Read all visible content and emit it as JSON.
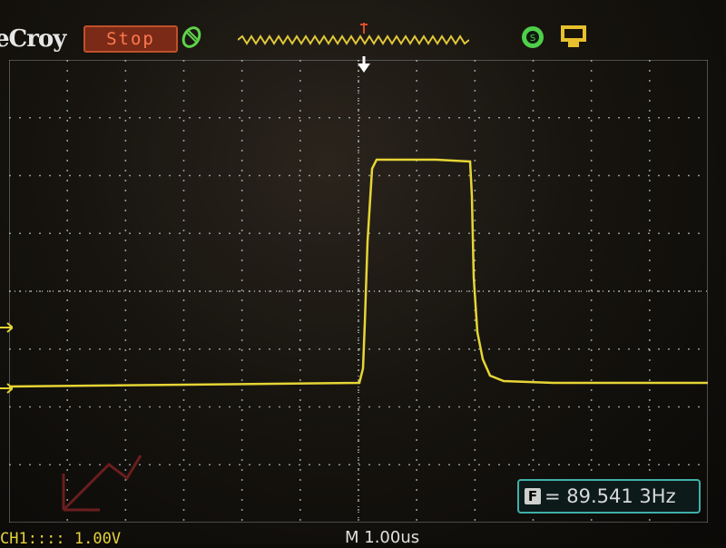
{
  "header": {
    "brand": "eCroy",
    "run_state": "Stop",
    "icons": {
      "trigger": "trigger-status-icon",
      "timebase": "timebase-window-icon",
      "coupling": "coupling-mode-icon",
      "usb": "usb-storage-icon"
    }
  },
  "measurement": {
    "label": "F",
    "value": "= 89.541 3Hz"
  },
  "footer": {
    "channel": "CH1:::: 1.00V",
    "timebase": "M 1.00us"
  },
  "colors": {
    "trace": "#e6d535",
    "grid": "#b9c4c8",
    "run_state": "#ff7a50",
    "measure_border": "#3fb0a8"
  }
}
